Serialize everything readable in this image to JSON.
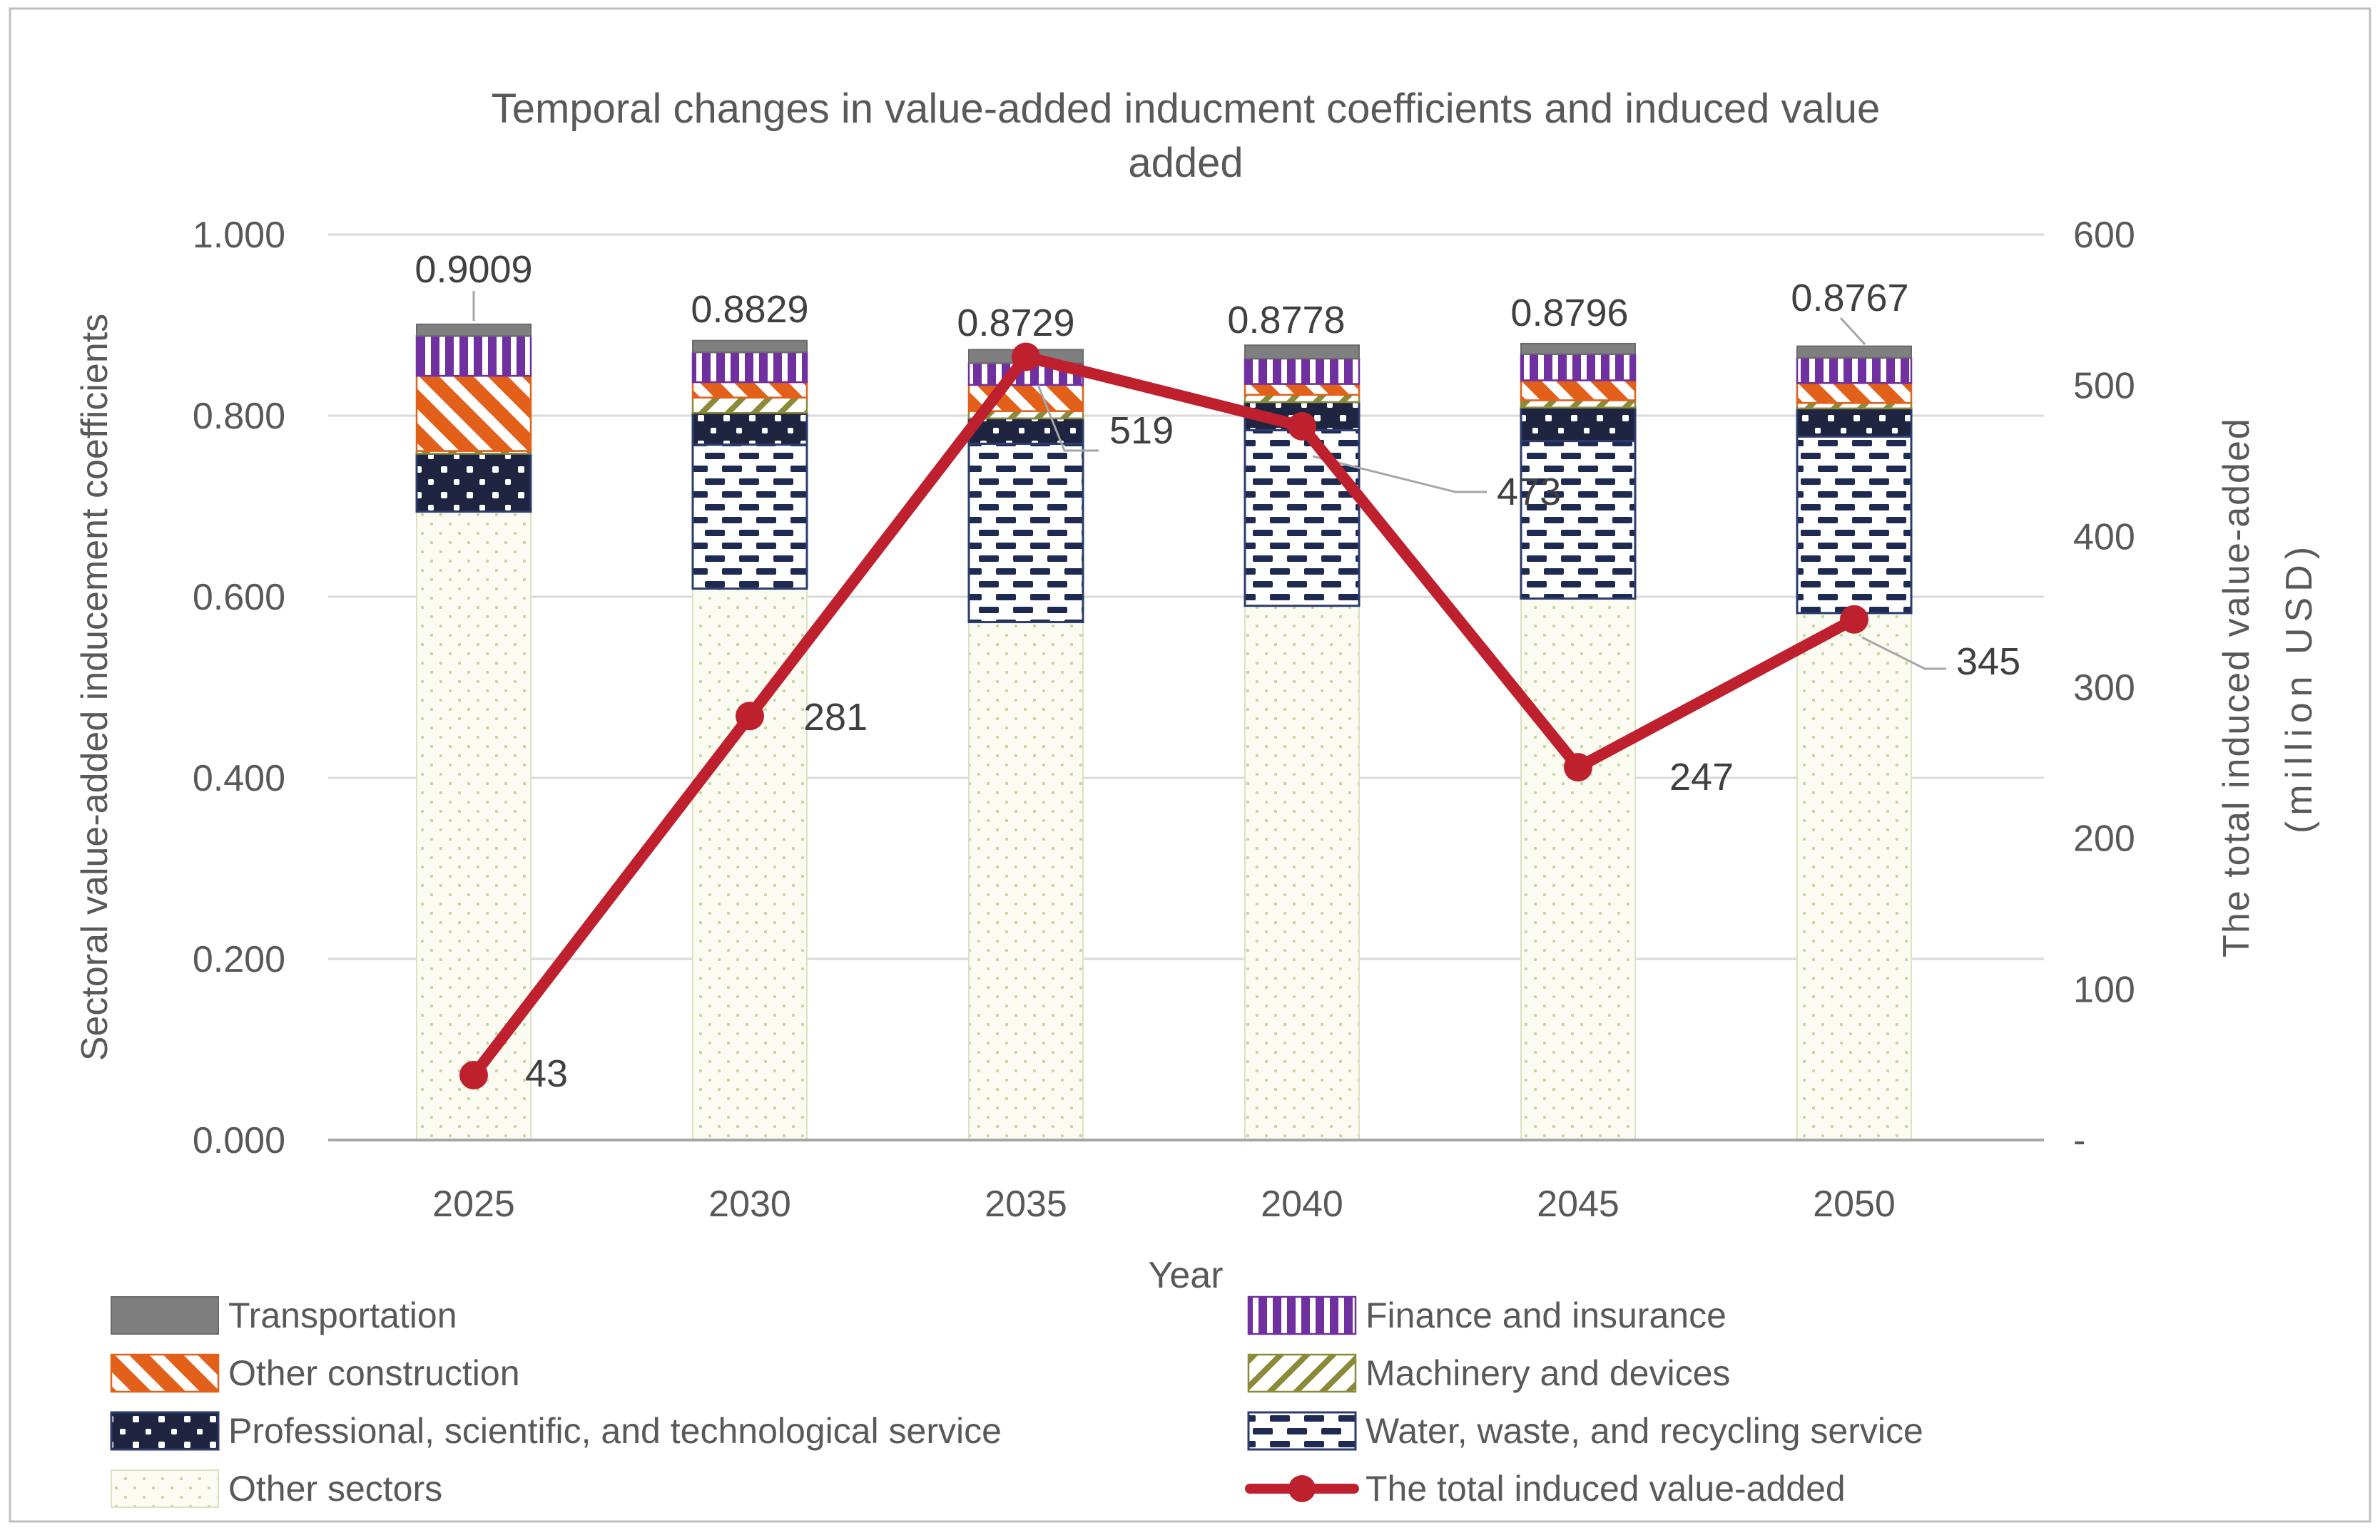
{
  "figure": {
    "border_color": "#BFBFBF",
    "background": "#FFFFFF"
  },
  "chart_data": {
    "type": "combo-stacked-bar-line",
    "title_lines": [
      "Temporal changes in value-added inducment coefficients and induced value",
      "added"
    ],
    "x_axis_title": "Year",
    "categories": [
      "2025",
      "2030",
      "2035",
      "2040",
      "2045",
      "2050"
    ],
    "left_axis": {
      "title": "Sectoral value-added inducement coefficients",
      "min": 0,
      "max": 1,
      "tick_step": 0.2,
      "tick_labels": [
        "0.000",
        "0.200",
        "0.400",
        "0.600",
        "0.800",
        "1.000"
      ]
    },
    "right_axis": {
      "title": "The total induced value-added",
      "subtitle": "(million USD)",
      "min": 0,
      "max": 600,
      "tick_step": 100,
      "tick_labels_top_to_bottom": [
        "600",
        "500",
        "400",
        "300",
        "200",
        "100",
        "-"
      ]
    },
    "grid": true,
    "legend_position": "bottom-two-columns",
    "bar_series": [
      {
        "key": "other",
        "name": "Other sectors",
        "values": [
          0.694,
          0.609,
          0.572,
          0.59,
          0.598,
          0.582
        ]
      },
      {
        "key": "water",
        "name": "Water, waste, and recycling service",
        "values": [
          0.0,
          0.159,
          0.197,
          0.194,
          0.174,
          0.195
        ]
      },
      {
        "key": "professional",
        "name": "Professional, scientific, and technological service",
        "values": [
          0.064,
          0.035,
          0.028,
          0.031,
          0.037,
          0.031
        ]
      },
      {
        "key": "machinery",
        "name": "Machinery and devices",
        "values": [
          0.003,
          0.017,
          0.008,
          0.008,
          0.008,
          0.006
        ]
      },
      {
        "key": "construction",
        "name": "Other construction",
        "values": [
          0.083,
          0.017,
          0.029,
          0.012,
          0.022,
          0.022
        ]
      },
      {
        "key": "finance",
        "name": "Finance and insurance",
        "values": [
          0.044,
          0.033,
          0.024,
          0.028,
          0.029,
          0.028
        ]
      },
      {
        "key": "transportation",
        "name": "Transportation",
        "values": [
          0.0129,
          0.0129,
          0.0149,
          0.0148,
          0.0116,
          0.0127
        ]
      }
    ],
    "bar_total_labels": [
      "0.9009",
      "0.8829",
      "0.8729",
      "0.8778",
      "0.8796",
      "0.8767"
    ],
    "line_series": {
      "name": "The total induced value-added",
      "color": "#BE202E",
      "values": [
        43,
        281,
        519,
        473,
        247,
        345
      ],
      "labels": [
        "43",
        "281",
        "519",
        "473",
        "247",
        "345"
      ]
    },
    "colors": {
      "transportation_fill": "#7F7F7F",
      "transportation_border": "#6A6A6A",
      "finance_stripe": "#7030A0",
      "construction_stripe": "#E2601A",
      "machinery_stripe": "#8A8A38",
      "professional_fill": "#1F2540",
      "professional_border": "#2D3C6E",
      "water_dash": "#1F2A52",
      "water_border": "#2D3C6E",
      "other_fill": "#FBFBF2",
      "other_dot": "#C8D79F",
      "other_border": "#D9E4C0",
      "line_red": "#BE202E",
      "grid": "#D9D9D9",
      "zero_axis": "#A6A6A6",
      "text_gray": "#595959",
      "label_gray": "#404040",
      "leader_gray": "#A6A6A6"
    }
  },
  "legend": {
    "items": [
      {
        "label": "Transportation",
        "swatch": "transportation",
        "col": 0,
        "row": 0
      },
      {
        "label": "Finance and insurance",
        "swatch": "finance",
        "col": 1,
        "row": 0
      },
      {
        "label": "Other construction",
        "swatch": "construction",
        "col": 0,
        "row": 1
      },
      {
        "label": "Machinery and devices",
        "swatch": "machinery",
        "col": 1,
        "row": 1
      },
      {
        "label": "Professional, scientific, and technological service",
        "swatch": "professional",
        "col": 0,
        "row": 2
      },
      {
        "label": "Water, waste, and recycling service",
        "swatch": "water",
        "col": 1,
        "row": 2
      },
      {
        "label": "Other sectors",
        "swatch": "other",
        "col": 0,
        "row": 3
      },
      {
        "label": "The total induced value-added",
        "swatch": "line",
        "col": 1,
        "row": 3
      }
    ]
  }
}
